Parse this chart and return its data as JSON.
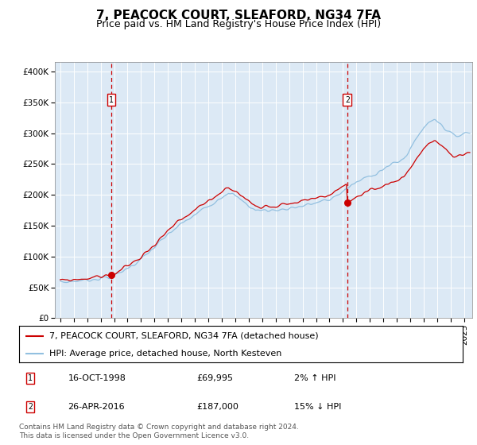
{
  "title": "7, PEACOCK COURT, SLEAFORD, NG34 7FA",
  "subtitle": "Price paid vs. HM Land Registry's House Price Index (HPI)",
  "ylabel_ticks": [
    "£0",
    "£50K",
    "£100K",
    "£150K",
    "£200K",
    "£250K",
    "£300K",
    "£350K",
    "£400K"
  ],
  "ytick_values": [
    0,
    50000,
    100000,
    150000,
    200000,
    250000,
    300000,
    350000,
    400000
  ],
  "ylim": [
    0,
    415000
  ],
  "xlim_start": 1994.6,
  "xlim_end": 2025.6,
  "sale1_x": 1998.79,
  "sale1_y": 69995,
  "sale1_label": "1",
  "sale2_x": 2016.32,
  "sale2_y": 187000,
  "sale2_label": "2",
  "vline1_x": 1998.79,
  "vline2_x": 2016.32,
  "hpi_color": "#92c0e0",
  "price_color": "#cc0000",
  "vline_color": "#cc0000",
  "plot_bg": "#dce9f5",
  "legend_line1": "7, PEACOCK COURT, SLEAFORD, NG34 7FA (detached house)",
  "legend_line2": "HPI: Average price, detached house, North Kesteven",
  "annotation1_date": "16-OCT-1998",
  "annotation1_price": "£69,995",
  "annotation1_hpi": "2% ↑ HPI",
  "annotation2_date": "26-APR-2016",
  "annotation2_price": "£187,000",
  "annotation2_hpi": "15% ↓ HPI",
  "footer": "Contains HM Land Registry data © Crown copyright and database right 2024.\nThis data is licensed under the Open Government Licence v3.0.",
  "title_fontsize": 11,
  "subtitle_fontsize": 9,
  "tick_fontsize": 7.5,
  "legend_fontsize": 8
}
